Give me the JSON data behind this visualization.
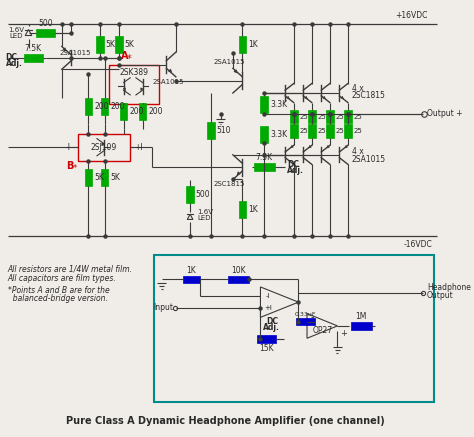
{
  "title": "Pure Class A Dynamic Headphone Amplifier (one channel)",
  "bg_color": "#f0ede8",
  "wire_color": "#3a3a3a",
  "rc": "#00aa00",
  "rc2": "#0000cc",
  "box_color": "#008b8b",
  "red_color": "#cc0000",
  "tc": "#2a2a2a",
  "plus16": "+16VDC",
  "minus16": "-16VDC",
  "note1": "All resistors are 1/4W metal film.",
  "note2": "All capacitors are film types.",
  "note3": "*Points A and B are for the",
  "note4": "  balanced-bridge version."
}
